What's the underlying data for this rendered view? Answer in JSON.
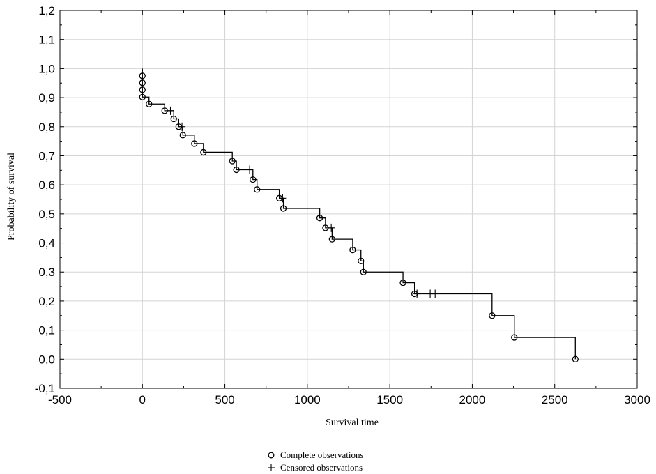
{
  "chart_data": {
    "type": "line",
    "title": "",
    "xlabel": "Survival time",
    "ylabel": "Probability of survival",
    "xlim": [
      -500,
      3000
    ],
    "ylim": [
      -0.1,
      1.2
    ],
    "x_ticks": [
      -500,
      0,
      500,
      1000,
      1500,
      2000,
      2500,
      3000
    ],
    "x_tick_labels": [
      "-500",
      "0",
      "500",
      "1000",
      "1500",
      "2000",
      "2500",
      "3000"
    ],
    "y_ticks": [
      -0.1,
      0.0,
      0.1,
      0.2,
      0.3,
      0.4,
      0.5,
      0.6,
      0.7,
      0.8,
      0.9,
      1.0,
      1.1,
      1.2
    ],
    "y_tick_labels": [
      "-0,1",
      "0,0",
      "0,1",
      "0,2",
      "0,3",
      "0,4",
      "0,5",
      "0,6",
      "0,7",
      "0,8",
      "0,9",
      "1,0",
      "1,1",
      "1,2"
    ],
    "grid": true,
    "legend_position": "bottom-center",
    "series": [
      {
        "name": "Complete observations",
        "marker": "circle",
        "points": [
          {
            "x": 0,
            "y": 0.975
          },
          {
            "x": 0,
            "y": 0.951
          },
          {
            "x": 0,
            "y": 0.927
          },
          {
            "x": 0,
            "y": 0.902
          },
          {
            "x": 40,
            "y": 0.878
          },
          {
            "x": 135,
            "y": 0.855
          },
          {
            "x": 190,
            "y": 0.827
          },
          {
            "x": 220,
            "y": 0.8
          },
          {
            "x": 245,
            "y": 0.771
          },
          {
            "x": 315,
            "y": 0.742
          },
          {
            "x": 370,
            "y": 0.712
          },
          {
            "x": 545,
            "y": 0.682
          },
          {
            "x": 570,
            "y": 0.652
          },
          {
            "x": 670,
            "y": 0.618
          },
          {
            "x": 695,
            "y": 0.584
          },
          {
            "x": 830,
            "y": 0.554
          },
          {
            "x": 855,
            "y": 0.519
          },
          {
            "x": 1075,
            "y": 0.486
          },
          {
            "x": 1110,
            "y": 0.452
          },
          {
            "x": 1150,
            "y": 0.413
          },
          {
            "x": 1275,
            "y": 0.376
          },
          {
            "x": 1325,
            "y": 0.338
          },
          {
            "x": 1340,
            "y": 0.3
          },
          {
            "x": 1580,
            "y": 0.263
          },
          {
            "x": 1650,
            "y": 0.225
          },
          {
            "x": 2120,
            "y": 0.15
          },
          {
            "x": 2255,
            "y": 0.075
          },
          {
            "x": 2625,
            "y": 0.0
          }
        ]
      },
      {
        "name": "Censored observations",
        "marker": "plus",
        "points": [
          {
            "x": 170,
            "y": 0.855
          },
          {
            "x": 240,
            "y": 0.8
          },
          {
            "x": 650,
            "y": 0.652
          },
          {
            "x": 850,
            "y": 0.554
          },
          {
            "x": 1145,
            "y": 0.452
          },
          {
            "x": 1665,
            "y": 0.225
          },
          {
            "x": 1745,
            "y": 0.225
          },
          {
            "x": 1775,
            "y": 0.225
          }
        ]
      }
    ],
    "step_curve": {
      "start": {
        "x": 0,
        "y": 1.0
      },
      "steps": [
        {
          "x": 0,
          "y": 0.902
        },
        {
          "x": 40,
          "y": 0.878
        },
        {
          "x": 135,
          "y": 0.855
        },
        {
          "x": 190,
          "y": 0.827
        },
        {
          "x": 220,
          "y": 0.8
        },
        {
          "x": 245,
          "y": 0.771
        },
        {
          "x": 315,
          "y": 0.742
        },
        {
          "x": 370,
          "y": 0.712
        },
        {
          "x": 545,
          "y": 0.682
        },
        {
          "x": 570,
          "y": 0.652
        },
        {
          "x": 670,
          "y": 0.618
        },
        {
          "x": 695,
          "y": 0.584
        },
        {
          "x": 830,
          "y": 0.554
        },
        {
          "x": 855,
          "y": 0.519
        },
        {
          "x": 1075,
          "y": 0.486
        },
        {
          "x": 1110,
          "y": 0.452
        },
        {
          "x": 1150,
          "y": 0.413
        },
        {
          "x": 1275,
          "y": 0.376
        },
        {
          "x": 1325,
          "y": 0.338
        },
        {
          "x": 1340,
          "y": 0.3
        },
        {
          "x": 1580,
          "y": 0.263
        },
        {
          "x": 1650,
          "y": 0.225
        },
        {
          "x": 2120,
          "y": 0.15
        },
        {
          "x": 2255,
          "y": 0.075
        },
        {
          "x": 2625,
          "y": 0.0
        }
      ]
    }
  }
}
